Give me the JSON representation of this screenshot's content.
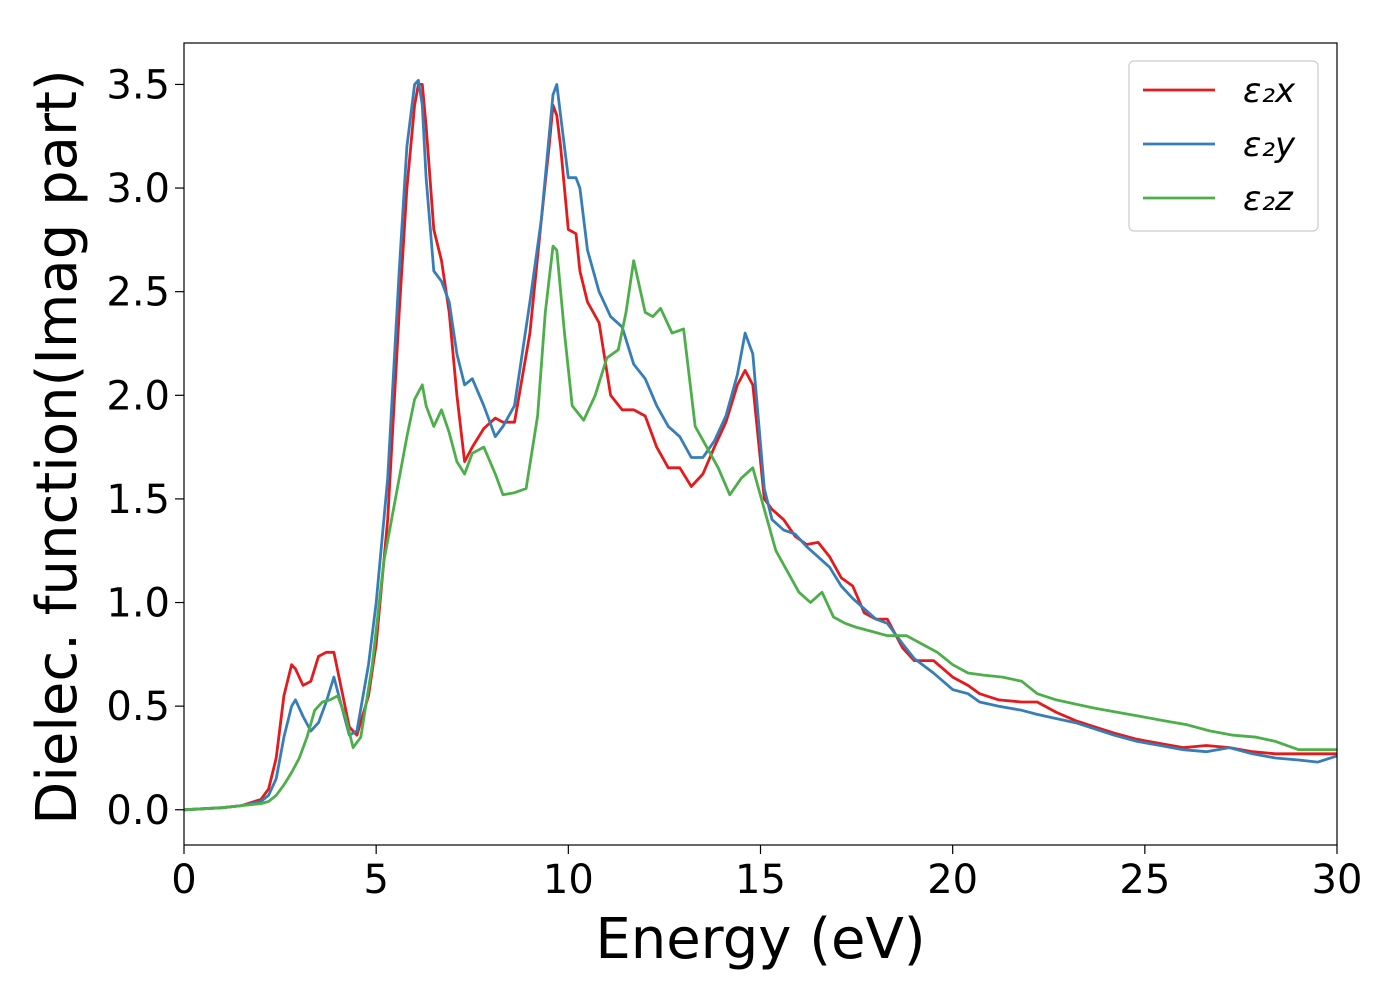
{
  "chart_data": {
    "type": "line",
    "title": "",
    "xlabel": "Energy (eV)",
    "ylabel": "Dielec. function(Imag part)",
    "xlim": [
      0,
      30
    ],
    "ylim": [
      -0.17,
      3.7
    ],
    "xticks": [
      0,
      5,
      10,
      15,
      20,
      25,
      30
    ],
    "xtick_labels": [
      "0",
      "5",
      "10",
      "15",
      "20",
      "25",
      "30"
    ],
    "yticks": [
      0.0,
      0.5,
      1.0,
      1.5,
      2.0,
      2.5,
      3.0,
      3.5
    ],
    "ytick_labels": [
      "0.0",
      "0.5",
      "1.0",
      "1.5",
      "2.0",
      "2.5",
      "3.0",
      "3.5"
    ],
    "grid": false,
    "legend_position": "top-right",
    "series": [
      {
        "name": "ε₂x",
        "color": "#e41a1c",
        "x": [
          0,
          1,
          1.5,
          2,
          2.2,
          2.4,
          2.6,
          2.8,
          2.9,
          3.1,
          3.3,
          3.5,
          3.7,
          3.9,
          4.1,
          4.3,
          4.5,
          4.8,
          5.0,
          5.3,
          5.6,
          5.8,
          6.0,
          6.1,
          6.2,
          6.3,
          6.5,
          6.7,
          6.9,
          7.1,
          7.3,
          7.5,
          7.8,
          8.1,
          8.3,
          8.6,
          9.0,
          9.3,
          9.5,
          9.6,
          9.7,
          9.8,
          10.0,
          10.2,
          10.3,
          10.5,
          10.8,
          11.1,
          11.4,
          11.7,
          12.0,
          12.3,
          12.6,
          12.9,
          13.2,
          13.5,
          13.8,
          14.1,
          14.4,
          14.6,
          14.8,
          15.1,
          15.3,
          15.6,
          15.9,
          16.2,
          16.5,
          16.8,
          17.1,
          17.4,
          17.7,
          18.0,
          18.3,
          18.7,
          19.0,
          19.5,
          20.0,
          20.4,
          20.7,
          21.2,
          21.8,
          22.2,
          22.7,
          23.2,
          23.7,
          24.2,
          24.8,
          25.4,
          26.0,
          26.6,
          27.2,
          27.8,
          28.4,
          29.0,
          29.5,
          30
        ],
        "y": [
          0.0,
          0.01,
          0.02,
          0.05,
          0.1,
          0.25,
          0.55,
          0.7,
          0.68,
          0.6,
          0.62,
          0.74,
          0.76,
          0.76,
          0.58,
          0.4,
          0.36,
          0.55,
          0.8,
          1.4,
          2.4,
          3.0,
          3.4,
          3.5,
          3.5,
          3.3,
          2.8,
          2.65,
          2.4,
          2.0,
          1.68,
          1.75,
          1.84,
          1.89,
          1.87,
          1.87,
          2.3,
          2.85,
          3.2,
          3.4,
          3.35,
          3.2,
          2.8,
          2.78,
          2.6,
          2.45,
          2.35,
          2.0,
          1.93,
          1.93,
          1.9,
          1.75,
          1.65,
          1.65,
          1.56,
          1.62,
          1.75,
          1.87,
          2.05,
          2.12,
          2.05,
          1.5,
          1.45,
          1.4,
          1.32,
          1.28,
          1.29,
          1.22,
          1.12,
          1.08,
          0.95,
          0.92,
          0.92,
          0.78,
          0.72,
          0.72,
          0.64,
          0.6,
          0.56,
          0.53,
          0.52,
          0.52,
          0.47,
          0.43,
          0.4,
          0.37,
          0.34,
          0.32,
          0.3,
          0.31,
          0.3,
          0.28,
          0.27,
          0.27,
          0.27,
          0.27
        ]
      },
      {
        "name": "ε₂y",
        "color": "#377eb8",
        "x": [
          0,
          1,
          1.5,
          2,
          2.2,
          2.4,
          2.6,
          2.8,
          2.9,
          3.1,
          3.3,
          3.5,
          3.7,
          3.9,
          4.1,
          4.3,
          4.5,
          4.8,
          5.0,
          5.3,
          5.6,
          5.8,
          6.0,
          6.1,
          6.2,
          6.3,
          6.5,
          6.7,
          6.9,
          7.1,
          7.3,
          7.5,
          7.8,
          8.1,
          8.3,
          8.6,
          9.0,
          9.3,
          9.5,
          9.6,
          9.7,
          9.8,
          10.0,
          10.2,
          10.3,
          10.5,
          10.8,
          11.1,
          11.4,
          11.7,
          12.0,
          12.3,
          12.6,
          12.9,
          13.2,
          13.5,
          13.8,
          14.1,
          14.4,
          14.6,
          14.8,
          15.1,
          15.3,
          15.6,
          15.9,
          16.2,
          16.5,
          16.8,
          17.1,
          17.4,
          17.7,
          18.0,
          18.3,
          18.7,
          19.0,
          19.5,
          20.0,
          20.4,
          20.7,
          21.2,
          21.8,
          22.2,
          22.7,
          23.2,
          23.7,
          24.2,
          24.8,
          25.4,
          26.0,
          26.6,
          27.2,
          27.8,
          28.4,
          29.0,
          29.5,
          30
        ],
        "y": [
          0.0,
          0.01,
          0.02,
          0.04,
          0.07,
          0.15,
          0.35,
          0.5,
          0.53,
          0.45,
          0.38,
          0.42,
          0.52,
          0.64,
          0.5,
          0.36,
          0.38,
          0.7,
          1.0,
          1.6,
          2.6,
          3.2,
          3.5,
          3.52,
          3.4,
          3.05,
          2.6,
          2.55,
          2.45,
          2.2,
          2.05,
          2.08,
          1.95,
          1.8,
          1.85,
          1.95,
          2.45,
          2.85,
          3.25,
          3.45,
          3.5,
          3.35,
          3.05,
          3.05,
          3.0,
          2.7,
          2.5,
          2.38,
          2.33,
          2.15,
          2.08,
          1.95,
          1.85,
          1.8,
          1.7,
          1.7,
          1.78,
          1.9,
          2.1,
          2.3,
          2.2,
          1.55,
          1.4,
          1.35,
          1.33,
          1.27,
          1.22,
          1.17,
          1.08,
          1.02,
          0.97,
          0.92,
          0.9,
          0.8,
          0.73,
          0.66,
          0.58,
          0.56,
          0.52,
          0.5,
          0.48,
          0.46,
          0.44,
          0.42,
          0.39,
          0.36,
          0.33,
          0.31,
          0.29,
          0.28,
          0.3,
          0.27,
          0.25,
          0.24,
          0.23,
          0.26
        ]
      },
      {
        "name": "ε₂z",
        "color": "#4daf4a",
        "x": [
          0,
          1,
          1.5,
          2,
          2.2,
          2.4,
          2.6,
          2.8,
          3.0,
          3.2,
          3.4,
          3.6,
          3.8,
          4.0,
          4.2,
          4.4,
          4.6,
          4.9,
          5.2,
          5.5,
          5.8,
          6.0,
          6.2,
          6.3,
          6.5,
          6.7,
          6.9,
          7.1,
          7.3,
          7.5,
          7.8,
          8.1,
          8.3,
          8.6,
          8.9,
          9.2,
          9.4,
          9.6,
          9.7,
          9.9,
          10.1,
          10.4,
          10.7,
          11.0,
          11.3,
          11.5,
          11.7,
          12.0,
          12.2,
          12.4,
          12.7,
          13.0,
          13.3,
          13.6,
          13.9,
          14.2,
          14.5,
          14.8,
          15.1,
          15.4,
          15.7,
          16.0,
          16.3,
          16.6,
          16.9,
          17.2,
          17.5,
          17.9,
          18.3,
          18.8,
          19.2,
          19.6,
          20.0,
          20.4,
          20.8,
          21.3,
          21.8,
          22.2,
          22.7,
          23.2,
          23.7,
          24.3,
          24.9,
          25.5,
          26.1,
          26.7,
          27.3,
          27.9,
          28.4,
          29.0,
          29.5,
          30
        ],
        "y": [
          0.0,
          0.01,
          0.02,
          0.03,
          0.04,
          0.07,
          0.12,
          0.18,
          0.25,
          0.35,
          0.48,
          0.52,
          0.53,
          0.55,
          0.45,
          0.3,
          0.35,
          0.7,
          1.2,
          1.5,
          1.8,
          1.98,
          2.05,
          1.95,
          1.85,
          1.93,
          1.82,
          1.68,
          1.62,
          1.72,
          1.75,
          1.62,
          1.52,
          1.53,
          1.55,
          1.9,
          2.4,
          2.72,
          2.7,
          2.3,
          1.95,
          1.88,
          2.0,
          2.18,
          2.22,
          2.4,
          2.65,
          2.4,
          2.38,
          2.42,
          2.3,
          2.32,
          1.85,
          1.75,
          1.65,
          1.52,
          1.6,
          1.65,
          1.45,
          1.25,
          1.15,
          1.05,
          1.0,
          1.05,
          0.93,
          0.9,
          0.88,
          0.86,
          0.84,
          0.84,
          0.8,
          0.76,
          0.7,
          0.66,
          0.65,
          0.64,
          0.62,
          0.56,
          0.53,
          0.51,
          0.49,
          0.47,
          0.45,
          0.43,
          0.41,
          0.38,
          0.36,
          0.35,
          0.33,
          0.29,
          0.29,
          0.29
        ]
      }
    ]
  }
}
